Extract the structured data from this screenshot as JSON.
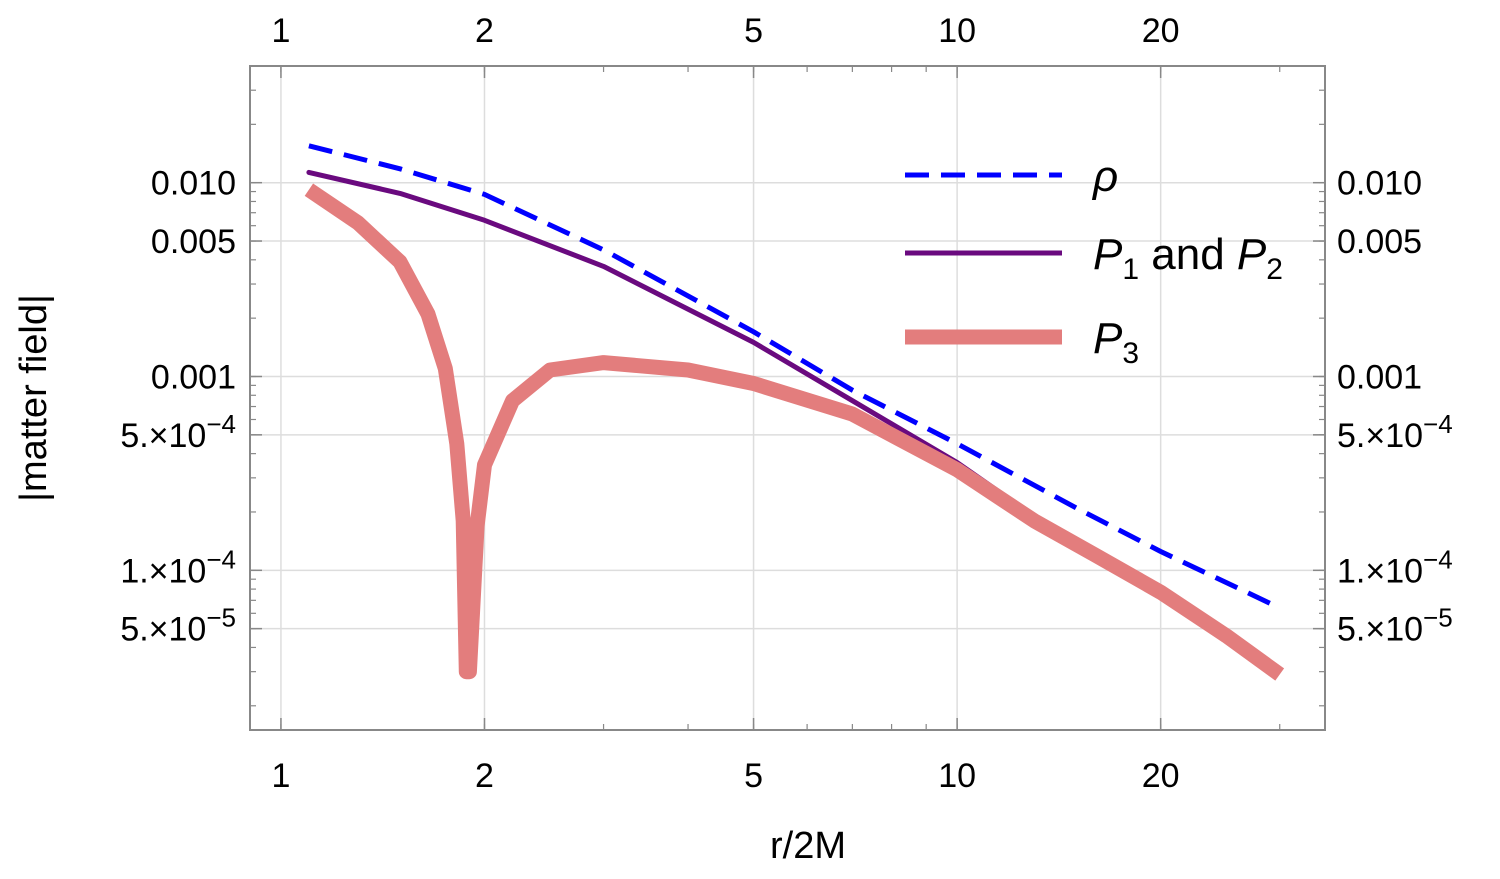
{
  "chart_data": {
    "type": "line",
    "xlabel": "r/2M",
    "ylabel": "|matter field|",
    "xscale": "log",
    "yscale": "log",
    "xlim": [
      0.9,
      35
    ],
    "ylim": [
      1.5e-05,
      0.04
    ],
    "grid": true,
    "frame_ticks_mirrored": true,
    "x_ticks": [
      {
        "value": 1,
        "label": "1"
      },
      {
        "value": 2,
        "label": "2"
      },
      {
        "value": 5,
        "label": "5"
      },
      {
        "value": 10,
        "label": "10"
      },
      {
        "value": 20,
        "label": "20"
      }
    ],
    "y_ticks": [
      {
        "value": 0.01,
        "label": "0.010"
      },
      {
        "value": 0.005,
        "label": "0.005"
      },
      {
        "value": 0.001,
        "label": "0.001"
      },
      {
        "value": 0.0005,
        "base": "5.×10",
        "exp": "−4"
      },
      {
        "value": 0.0001,
        "base": "1.×10",
        "exp": "−4"
      },
      {
        "value": 5e-05,
        "base": "5.×10",
        "exp": "−5"
      }
    ],
    "legend_position": "top-right",
    "series": [
      {
        "name": "ρ",
        "color": "#0000ff",
        "style": "dashed",
        "legend": {
          "main": "ρ"
        },
        "x": [
          1.1,
          1.5,
          2,
          3,
          5,
          7,
          10,
          15,
          20,
          30
        ],
        "y": [
          0.0155,
          0.0118,
          0.0087,
          0.0045,
          0.0017,
          0.00085,
          0.00045,
          0.00021,
          0.000125,
          6.4e-05
        ]
      },
      {
        "name": "P1 and P2",
        "color": "#6a0a7f",
        "style": "solid",
        "legend": {
          "p": "P",
          "sub1": "1",
          "mid": " and ",
          "sub2": "2"
        },
        "x": [
          1.1,
          1.5,
          2,
          3,
          5,
          7,
          10,
          13,
          16,
          20,
          25,
          30
        ],
        "y": [
          0.0113,
          0.0088,
          0.0064,
          0.0037,
          0.0015,
          0.00075,
          0.00036,
          0.00019,
          0.00012,
          7.7e-05,
          4.8e-05,
          3.1e-05
        ]
      },
      {
        "name": "P3",
        "color": "#e37d7d",
        "style": "thick",
        "legend": {
          "p": "P",
          "sub": "3"
        },
        "x": [
          1.1,
          1.3,
          1.5,
          1.65,
          1.75,
          1.82,
          1.86,
          1.88,
          1.9,
          1.95,
          2.0,
          2.2,
          2.5,
          3.0,
          4.0,
          5.0,
          7.0,
          10,
          13,
          16,
          20,
          25,
          30
        ],
        "y": [
          0.0092,
          0.0062,
          0.0039,
          0.0021,
          0.0011,
          0.00045,
          0.00018,
          3e-05,
          3e-05,
          0.00017,
          0.00035,
          0.00075,
          0.00108,
          0.00118,
          0.00108,
          0.00092,
          0.00064,
          0.00033,
          0.00018,
          0.00012,
          7.7e-05,
          4.6e-05,
          2.9e-05
        ]
      }
    ]
  }
}
